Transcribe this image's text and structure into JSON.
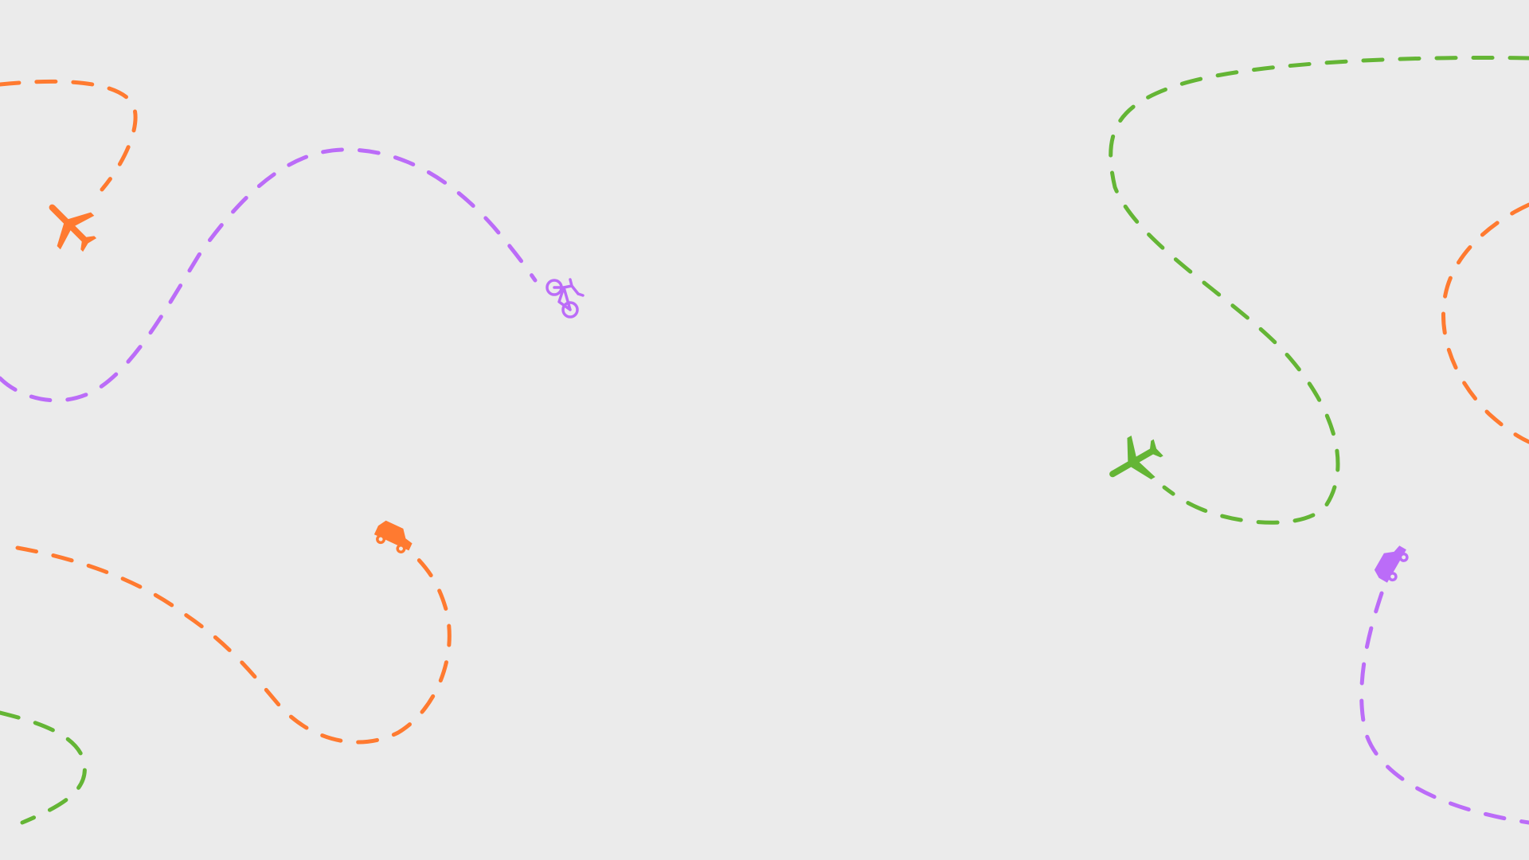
{
  "background": "#ebebeb",
  "colors": {
    "orange": "#ff7a30",
    "purple": "#bb6cf8",
    "green": "#64b535"
  },
  "trails": [
    {
      "id": "orange-plane-trail",
      "color": "orange",
      "icon": "airplane-icon"
    },
    {
      "id": "purple-bike-trail",
      "color": "purple",
      "icon": "bicycle-icon"
    },
    {
      "id": "orange-car-trail",
      "color": "orange",
      "icon": "car-icon"
    },
    {
      "id": "green-corner-trail",
      "color": "green",
      "icon": ""
    },
    {
      "id": "green-plane-trail",
      "color": "green",
      "icon": "airplane-icon"
    },
    {
      "id": "orange-right-trail",
      "color": "orange",
      "icon": ""
    },
    {
      "id": "purple-car-trail",
      "color": "purple",
      "icon": "car-icon"
    }
  ]
}
